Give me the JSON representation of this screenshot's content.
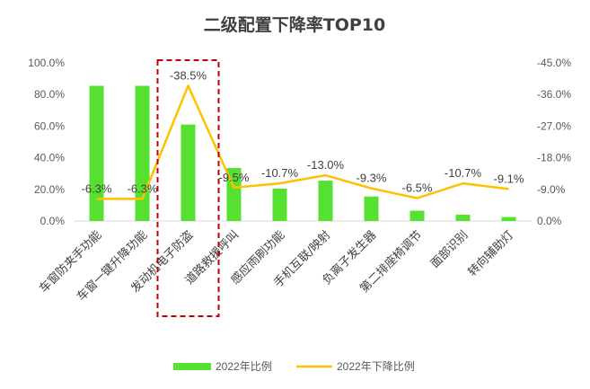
{
  "chart_data": {
    "type": "bar",
    "title": "二级配置下降率TOP10",
    "categories": [
      "车窗防夹手功能",
      "车窗一键升降功能",
      "发动机电子防盗",
      "道路救援呼叫",
      "感应雨刷功能",
      "手机互联/映射",
      "负离子发生器",
      "第二排座椅调节",
      "面部识别",
      "转向辅助灯"
    ],
    "series": [
      {
        "name": "2022年比例",
        "type": "bar",
        "axis": "left",
        "color": "#56e02f",
        "values": [
          85.5,
          85.5,
          61.0,
          33.5,
          20.5,
          25.5,
          15.5,
          6.5,
          4.0,
          2.5
        ]
      },
      {
        "name": "2022年下降比例",
        "type": "line",
        "axis": "right",
        "color": "#ffc000",
        "values": [
          -6.3,
          -6.3,
          -38.5,
          -9.5,
          -10.7,
          -13.0,
          -9.3,
          -6.5,
          -10.7,
          -9.1
        ],
        "labels": [
          "-6.3%",
          "-6.3%",
          "-38.5%",
          "-9.5%",
          "-10.7%",
          "-13.0%",
          "-9.3%",
          "-6.5%",
          "-10.7%",
          "-9.1%"
        ]
      }
    ],
    "y_left": {
      "ylim": [
        0,
        100
      ],
      "ticks": [
        "0.0%",
        "20.0%",
        "40.0%",
        "60.0%",
        "80.0%",
        "100.0%"
      ]
    },
    "y_right": {
      "ylim": [
        0,
        -45
      ],
      "ticks": [
        "0.0%",
        "-9.0%",
        "-18.0%",
        "-27.0%",
        "-36.0%",
        "-45.0%"
      ]
    },
    "highlight_category": "发动机电子防盗",
    "highlight_color": "#c00000",
    "legend_position": "bottom",
    "grid": false
  }
}
